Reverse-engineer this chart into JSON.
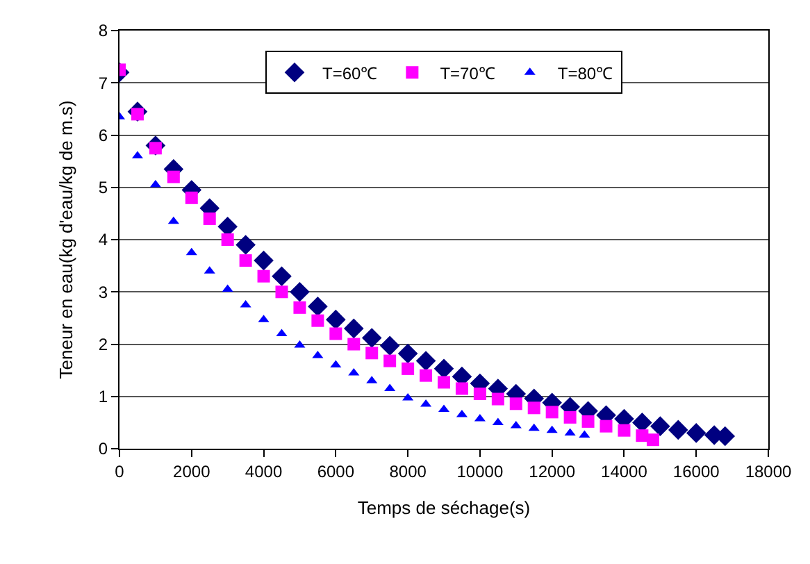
{
  "chart_data": {
    "type": "scatter",
    "xlabel": "Temps de séchage(s)",
    "ylabel": "Teneur en eau(kg d'eau/kg de m.s)",
    "xlim": [
      0,
      18000
    ],
    "xticks": [
      0,
      2000,
      4000,
      6000,
      8000,
      10000,
      12000,
      14000,
      16000,
      18000
    ],
    "ylim": [
      0,
      8
    ],
    "yticks": [
      0,
      1,
      2,
      3,
      4,
      5,
      6,
      7,
      8
    ],
    "grid": "y",
    "legend": "top",
    "series": [
      {
        "name": "T=60℃",
        "color": "#000080",
        "marker": "diamond",
        "x": [
          0,
          500,
          1000,
          1500,
          2000,
          2500,
          3000,
          3500,
          4000,
          4500,
          5000,
          5500,
          6000,
          6500,
          7000,
          7500,
          8000,
          8500,
          9000,
          9500,
          10000,
          10500,
          11000,
          11500,
          12000,
          12500,
          13000,
          13500,
          14000,
          14500,
          15000,
          15500,
          16000,
          16500,
          16800
        ],
        "values": [
          7.2,
          6.45,
          5.8,
          5.35,
          4.95,
          4.6,
          4.25,
          3.9,
          3.6,
          3.3,
          3.0,
          2.72,
          2.47,
          2.3,
          2.12,
          1.97,
          1.82,
          1.68,
          1.53,
          1.38,
          1.25,
          1.15,
          1.05,
          0.96,
          0.88,
          0.8,
          0.72,
          0.64,
          0.57,
          0.5,
          0.43,
          0.36,
          0.3,
          0.26,
          0.24
        ]
      },
      {
        "name": "T=70℃",
        "color": "#ff00ff",
        "marker": "square",
        "x": [
          0,
          500,
          1000,
          1500,
          2000,
          2500,
          3000,
          3500,
          4000,
          4500,
          5000,
          5500,
          6000,
          6500,
          7000,
          7500,
          8000,
          8500,
          9000,
          9500,
          10000,
          10500,
          11000,
          11500,
          12000,
          12500,
          13000,
          13500,
          14000,
          14500,
          14800
        ],
        "values": [
          7.25,
          6.4,
          5.75,
          5.2,
          4.8,
          4.4,
          4.0,
          3.6,
          3.3,
          3.0,
          2.7,
          2.45,
          2.2,
          2.0,
          1.83,
          1.68,
          1.53,
          1.4,
          1.27,
          1.15,
          1.05,
          0.95,
          0.86,
          0.78,
          0.7,
          0.6,
          0.52,
          0.43,
          0.35,
          0.25,
          0.17
        ]
      },
      {
        "name": "T=80℃",
        "color": "#0000ff",
        "marker": "triangle",
        "x": [
          0,
          500,
          1000,
          1500,
          2000,
          2500,
          3000,
          3500,
          4000,
          4500,
          5000,
          5500,
          6000,
          6500,
          7000,
          7500,
          8000,
          8500,
          9000,
          9500,
          10000,
          10500,
          11000,
          11500,
          12000,
          12500,
          12900
        ],
        "values": [
          6.35,
          5.6,
          5.05,
          4.35,
          3.75,
          3.4,
          3.05,
          2.75,
          2.47,
          2.2,
          1.98,
          1.78,
          1.6,
          1.45,
          1.3,
          1.15,
          0.97,
          0.85,
          0.75,
          0.65,
          0.57,
          0.5,
          0.44,
          0.39,
          0.35,
          0.3,
          0.26
        ]
      }
    ]
  }
}
